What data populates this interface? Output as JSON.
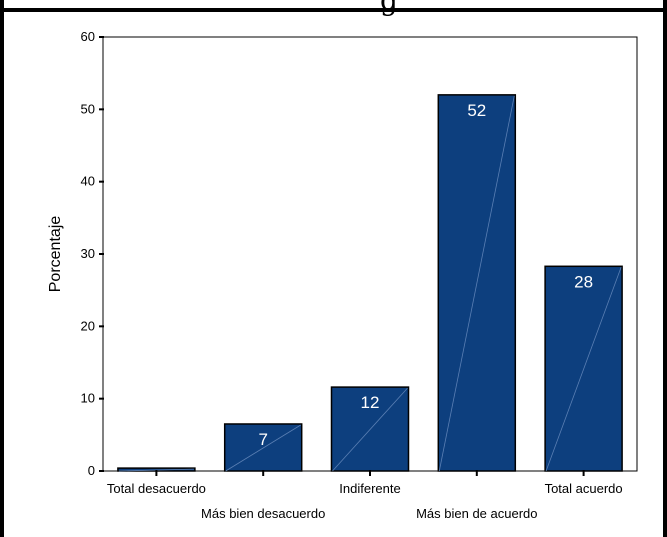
{
  "chart_data": {
    "type": "bar",
    "categories": [
      "Total desacuerdo",
      "Más bien desacuerdo",
      "Indiferente",
      "Más bien de acuerdo",
      "Total acuerdo"
    ],
    "values": [
      0.4,
      6.5,
      11.6,
      52,
      28.3
    ],
    "data_labels": [
      "",
      "7",
      "12",
      "52",
      "28"
    ],
    "title": "",
    "partial_title_glyph": "g",
    "xlabel": "",
    "ylabel": "Porcentaje",
    "ylim": [
      0,
      60
    ],
    "yticks": [
      0,
      10,
      20,
      30,
      40,
      50,
      60
    ],
    "bar_color": "#0d3f7e",
    "grid": false
  }
}
